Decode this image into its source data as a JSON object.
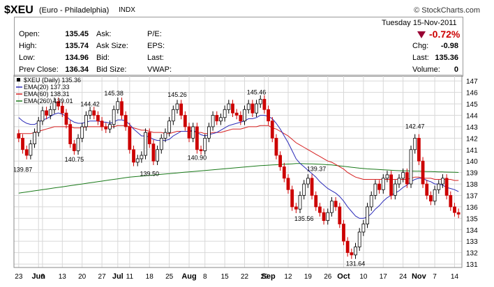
{
  "header": {
    "symbol": "$XEU",
    "name": "(Euro - Philadelphia)",
    "exchange": "INDX",
    "brand": "© StockCharts.com"
  },
  "quote": {
    "open_label": "Open:",
    "open": "135.45",
    "high_label": "High:",
    "high": "135.74",
    "low_label": "Low:",
    "low": "134.96",
    "prev_label": "Prev Close:",
    "prev": "136.34",
    "ask_label": "Ask:",
    "asksize_label": "Ask Size:",
    "bid_label": "Bid:",
    "bidsize_label": "Bid Size:",
    "pe_label": "P/E:",
    "eps_label": "EPS:",
    "last_label2": "Last:",
    "vwap_label": "VWAP:",
    "date": "Tuesday  15-Nov-2011",
    "pct_change": "-0.72%",
    "chg_label": "Chg:",
    "chg": "-0.98",
    "last_label": "Last:",
    "last": "135.36",
    "volume_label": "Volume:",
    "volume": "0"
  },
  "colors": {
    "up": "#ffffff",
    "down": "#cc0000",
    "ema20": "#2a2ab8",
    "ema60": "#d62020",
    "ema260": "#1a7a1a",
    "grid": "#d8d8d8"
  },
  "chart_data": {
    "type": "candlestick",
    "ylim": [
      130.7,
      147.5
    ],
    "yticks": [
      131,
      132,
      133,
      134,
      135,
      136,
      137,
      138,
      139,
      140,
      141,
      142,
      143,
      144,
      145,
      146,
      147
    ],
    "xticks": [
      {
        "i": 0,
        "label": "23"
      },
      {
        "i": 5,
        "label": "Jun"
      },
      {
        "i": 6,
        "label": "6"
      },
      {
        "i": 11,
        "label": "13"
      },
      {
        "i": 16,
        "label": "20"
      },
      {
        "i": 21,
        "label": "27"
      },
      {
        "i": 25,
        "label": "Jul"
      },
      {
        "i": 28,
        "label": "11"
      },
      {
        "i": 33,
        "label": "18"
      },
      {
        "i": 38,
        "label": "25"
      },
      {
        "i": 43,
        "label": "Aug"
      },
      {
        "i": 47,
        "label": "8"
      },
      {
        "i": 52,
        "label": "15"
      },
      {
        "i": 57,
        "label": "22"
      },
      {
        "i": 62,
        "label": "29"
      },
      {
        "i": 63,
        "label": "Sep"
      },
      {
        "i": 68,
        "label": "12"
      },
      {
        "i": 73,
        "label": "19"
      },
      {
        "i": 78,
        "label": "26"
      },
      {
        "i": 82,
        "label": "Oct"
      },
      {
        "i": 87,
        "label": "10"
      },
      {
        "i": 92,
        "label": "17"
      },
      {
        "i": 97,
        "label": "24"
      },
      {
        "i": 101,
        "label": "Nov"
      },
      {
        "i": 105,
        "label": "7"
      },
      {
        "i": 110,
        "label": "14"
      }
    ],
    "legend": [
      {
        "label": "$XEU (Daily) 135.36",
        "color": "#000000"
      },
      {
        "label": "EMA(20) 137.33",
        "color": "#2a2ab8"
      },
      {
        "label": "EMA(60) 138.31",
        "color": "#d62020"
      },
      {
        "label": "EMA(260) 139.01",
        "color": "#1a7a1a"
      }
    ],
    "annotations": [
      {
        "i": 1,
        "value": 139.87,
        "label": "139.87",
        "pos": "below"
      },
      {
        "i": 14,
        "value": 140.75,
        "label": "140.75",
        "pos": "below"
      },
      {
        "i": 18,
        "value": 144.42,
        "label": "144.42",
        "pos": "above"
      },
      {
        "i": 24,
        "value": 145.38,
        "label": "145.38",
        "pos": "above"
      },
      {
        "i": 33,
        "value": 139.5,
        "label": "139.50",
        "pos": "below"
      },
      {
        "i": 40,
        "value": 145.26,
        "label": "145.26",
        "pos": "above"
      },
      {
        "i": 45,
        "value": 140.9,
        "label": "140.90",
        "pos": "below"
      },
      {
        "i": 60,
        "value": 145.46,
        "label": "145.46",
        "pos": "above"
      },
      {
        "i": 72,
        "value": 139.37,
        "label": "139.37",
        "pos": "right"
      },
      {
        "i": 72,
        "value": 135.56,
        "label": "135.56",
        "pos": "below"
      },
      {
        "i": 85,
        "value": 131.64,
        "label": "131.64",
        "pos": "below"
      },
      {
        "i": 100,
        "value": 142.47,
        "label": "142.47",
        "pos": "above"
      }
    ],
    "closes": [
      142.0,
      141.0,
      140.5,
      141.5,
      142.5,
      143.5,
      144.4,
      144.0,
      144.5,
      145.2,
      144.8,
      144.2,
      143.2,
      141.5,
      140.9,
      142.0,
      143.0,
      144.0,
      144.4,
      144.0,
      143.5,
      143.0,
      142.8,
      143.2,
      144.5,
      145.2,
      144.0,
      143.0,
      141.0,
      139.9,
      140.2,
      140.5,
      142.5,
      141.5,
      140.0,
      141.0,
      142.0,
      142.5,
      143.5,
      144.5,
      145.0,
      144.0,
      143.0,
      142.0,
      143.0,
      141.0,
      140.9,
      142.0,
      143.0,
      144.0,
      143.5,
      143.8,
      144.5,
      145.0,
      144.2,
      144.0,
      143.5,
      144.5,
      145.0,
      144.2,
      145.0,
      145.4,
      144.5,
      143.5,
      142.0,
      140.5,
      139.5,
      138.5,
      137.5,
      136.0,
      135.8,
      137.0,
      138.0,
      138.5,
      137.0,
      136.0,
      135.5,
      134.8,
      135.5,
      136.5,
      136.0,
      134.5,
      133.0,
      132.0,
      131.8,
      132.5,
      133.8,
      134.5,
      136.0,
      137.0,
      138.0,
      137.5,
      138.5,
      138.8,
      137.0,
      138.0,
      138.5,
      139.0,
      138.0,
      141.0,
      142.0,
      140.0,
      138.0,
      137.0,
      136.5,
      137.5,
      138.0,
      138.5,
      137.0,
      136.0,
      135.5,
      135.36
    ],
    "ema20": [
      143.8,
      143.5,
      143.3,
      143.2,
      143.2,
      143.4,
      143.6,
      143.7,
      143.9,
      144.1,
      144.2,
      144.1,
      143.9,
      143.6,
      143.4,
      143.3,
      143.3,
      143.4,
      143.5,
      143.5,
      143.5,
      143.4,
      143.4,
      143.3,
      143.4,
      143.6,
      143.6,
      143.5,
      143.2,
      142.8,
      142.5,
      142.2,
      142.2,
      142.1,
      141.9,
      141.8,
      141.8,
      141.8,
      141.9,
      142.2,
      142.4,
      142.6,
      142.6,
      142.6,
      142.7,
      142.5,
      142.3,
      142.2,
      142.3,
      142.4,
      142.5,
      142.7,
      142.9,
      143.1,
      143.2,
      143.3,
      143.4,
      143.5,
      143.7,
      143.7,
      143.8,
      144.0,
      144.0,
      143.9,
      143.7,
      143.3,
      142.8,
      142.2,
      141.6,
      140.9,
      140.2,
      139.8,
      139.5,
      139.2,
      138.9,
      138.6,
      138.2,
      137.9,
      137.6,
      137.4,
      137.2,
      136.9,
      136.5,
      136.0,
      135.6,
      135.2,
      135.0,
      135.0,
      135.1,
      135.4,
      135.8,
      136.1,
      136.5,
      136.8,
      137.0,
      137.2,
      137.4,
      137.7,
      137.9,
      138.2,
      138.4,
      138.5,
      138.5,
      138.3,
      138.2,
      138.0,
      138.0,
      137.9,
      137.7,
      137.6,
      137.5,
      137.33
    ],
    "ema60": [
      142.4,
      142.4,
      142.4,
      142.4,
      142.5,
      142.6,
      142.7,
      142.8,
      142.9,
      143.0,
      143.0,
      143.0,
      143.0,
      143.0,
      142.9,
      142.9,
      142.9,
      143.0,
      143.0,
      143.0,
      143.0,
      143.0,
      143.0,
      143.0,
      143.0,
      143.1,
      143.1,
      143.1,
      143.0,
      142.9,
      142.8,
      142.7,
      142.7,
      142.6,
      142.5,
      142.5,
      142.5,
      142.4,
      142.4,
      142.5,
      142.6,
      142.6,
      142.6,
      142.6,
      142.6,
      142.5,
      142.5,
      142.4,
      142.4,
      142.5,
      142.5,
      142.5,
      142.6,
      142.7,
      142.8,
      142.8,
      142.8,
      142.9,
      143.0,
      143.0,
      143.0,
      143.1,
      143.1,
      143.1,
      142.9,
      142.8,
      142.6,
      142.4,
      142.2,
      141.9,
      141.6,
      141.4,
      141.2,
      141.0,
      140.8,
      140.6,
      140.4,
      140.2,
      140.0,
      139.9,
      139.7,
      139.5,
      139.3,
      139.0,
      138.8,
      138.6,
      138.5,
      138.4,
      138.4,
      138.4,
      138.4,
      138.4,
      138.4,
      138.4,
      138.4,
      138.4,
      138.4,
      138.4,
      138.4,
      138.5,
      138.6,
      138.6,
      138.5,
      138.5,
      138.5,
      138.4,
      138.4,
      138.4,
      138.4,
      138.4,
      138.3,
      138.31
    ],
    "ema260": [
      137.2,
      137.25,
      137.3,
      137.35,
      137.4,
      137.45,
      137.5,
      137.55,
      137.6,
      137.65,
      137.7,
      137.75,
      137.8,
      137.85,
      137.9,
      137.95,
      138.0,
      138.05,
      138.1,
      138.15,
      138.2,
      138.25,
      138.3,
      138.35,
      138.4,
      138.45,
      138.5,
      138.55,
      138.6,
      138.63,
      138.66,
      138.69,
      138.72,
      138.75,
      138.78,
      138.81,
      138.84,
      138.87,
      138.9,
      138.93,
      138.96,
      139.0,
      139.03,
      139.06,
      139.09,
      139.12,
      139.15,
      139.18,
      139.21,
      139.24,
      139.27,
      139.3,
      139.33,
      139.36,
      139.39,
      139.42,
      139.45,
      139.48,
      139.51,
      139.54,
      139.57,
      139.6,
      139.62,
      139.64,
      139.66,
      139.68,
      139.7,
      139.72,
      139.74,
      139.76,
      139.78,
      139.78,
      139.77,
      139.76,
      139.75,
      139.74,
      139.72,
      139.7,
      139.68,
      139.66,
      139.62,
      139.58,
      139.54,
      139.5,
      139.46,
      139.42,
      139.38,
      139.35,
      139.32,
      139.3,
      139.28,
      139.26,
      139.24,
      139.22,
      139.2,
      139.18,
      139.16,
      139.15,
      139.14,
      139.13,
      139.12,
      139.11,
      139.1,
      139.09,
      139.08,
      139.07,
      139.06,
      139.05,
      139.04,
      139.03,
      139.02,
      139.01
    ]
  }
}
